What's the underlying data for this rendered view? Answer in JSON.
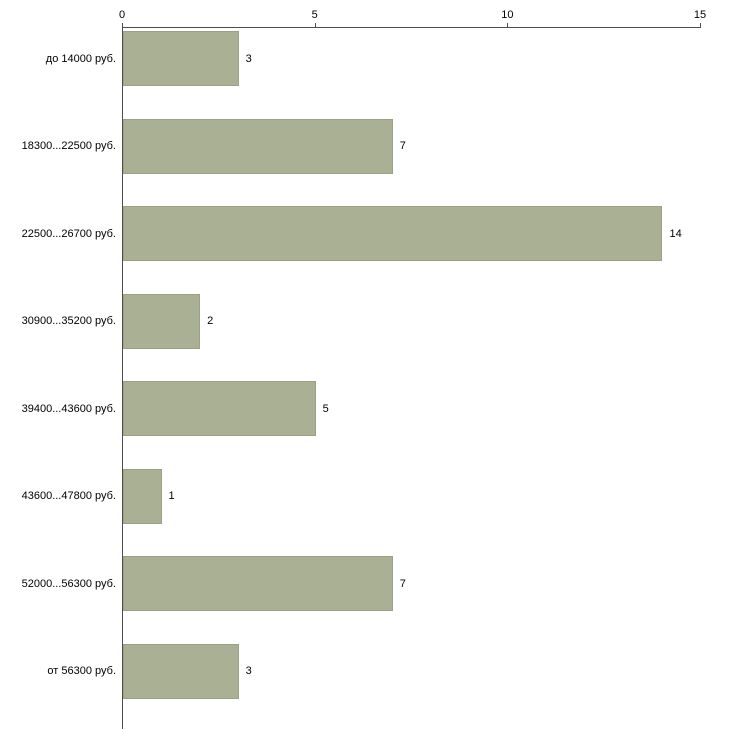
{
  "chart_data": {
    "type": "bar",
    "orientation": "horizontal",
    "title": "",
    "xlabel": "",
    "ylabel": "",
    "categories": [
      "до 14000 руб.",
      "18300...22500 руб.",
      "22500...26700 руб.",
      "30900...35200 руб.",
      "39400...43600 руб.",
      "43600...47800 руб.",
      "52000...56300 руб.",
      "от 56300 руб."
    ],
    "values": [
      3,
      7,
      14,
      2,
      5,
      1,
      7,
      3
    ],
    "value_labels": [
      "3",
      "7",
      "14",
      "2",
      "5",
      "1",
      "7",
      "3"
    ],
    "x_ticks": [
      "0",
      "5",
      "10",
      "15"
    ],
    "x_tick_values": [
      0,
      5,
      10,
      15
    ],
    "xlim": [
      0,
      15
    ],
    "grid": false,
    "legend": false,
    "bar_color": "#A9B094",
    "bar_border_color": "#9AA185",
    "axis_color": "#4D4D4D",
    "text_color": "#000000",
    "background_color": "#FFFFFF"
  }
}
